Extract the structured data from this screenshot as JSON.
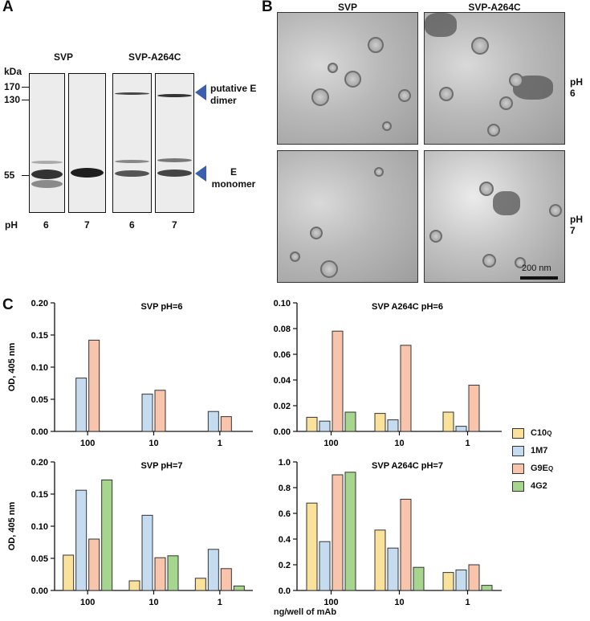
{
  "panels": {
    "a": "A",
    "b": "B",
    "c": "C"
  },
  "gel": {
    "kda_label": "kDa",
    "markers": [
      "170",
      "130",
      "55"
    ],
    "group_labels": [
      "SVP",
      "SVP-A264C"
    ],
    "ph_label": "pH",
    "lane_ph": [
      "6",
      "7",
      "6",
      "7"
    ],
    "annotations": [
      "putative E dimer",
      "E monomer"
    ],
    "arrow_color": "#3b5fae"
  },
  "em": {
    "col_labels": [
      "SVP",
      "SVP-A264C"
    ],
    "row_labels": [
      "pH 6",
      "pH 7"
    ],
    "scale_bar": "200 nm"
  },
  "legend": {
    "items": [
      {
        "name": "C10",
        "sup": "Q",
        "color": "#fbe29a"
      },
      {
        "name": "1M7",
        "sup": "",
        "color": "#c5dcf0"
      },
      {
        "name": "G9E",
        "sup": "Q",
        "color": "#f8c4ab"
      },
      {
        "name": "4G2",
        "sup": "",
        "color": "#a6d58d"
      }
    ]
  },
  "xlabel_shared": "ng/well of mAb",
  "chart_data": [
    {
      "type": "bar",
      "title": "SVP pH=6",
      "categories": [
        "100",
        "10",
        "1"
      ],
      "ylabel": "OD, 405 nm",
      "ylim": [
        0,
        0.2
      ],
      "yticks": [
        "0.00",
        "0.05",
        "0.10",
        "0.15",
        "0.20"
      ],
      "series": [
        {
          "name": "C10Q",
          "values": [
            null,
            null,
            null
          ]
        },
        {
          "name": "1M7",
          "values": [
            0.083,
            0.058,
            0.031
          ]
        },
        {
          "name": "G9EQ",
          "values": [
            0.142,
            0.064,
            0.023
          ]
        },
        {
          "name": "4G2",
          "values": [
            null,
            null,
            null
          ]
        }
      ]
    },
    {
      "type": "bar",
      "title": "SVP A264C pH=6",
      "categories": [
        "100",
        "10",
        "1"
      ],
      "ylabel": "",
      "ylim": [
        0,
        0.1
      ],
      "yticks": [
        "0.00",
        "0.02",
        "0.04",
        "0.06",
        "0.08",
        "0.10"
      ],
      "series": [
        {
          "name": "C10Q",
          "values": [
            0.011,
            0.014,
            0.015
          ]
        },
        {
          "name": "1M7",
          "values": [
            0.008,
            0.009,
            0.004
          ]
        },
        {
          "name": "G9EQ",
          "values": [
            0.078,
            0.067,
            0.036
          ]
        },
        {
          "name": "4G2",
          "values": [
            0.015,
            null,
            null
          ]
        }
      ]
    },
    {
      "type": "bar",
      "title": "SVP pH=7",
      "categories": [
        "100",
        "10",
        "1"
      ],
      "ylabel": "OD, 405 nm",
      "ylim": [
        0,
        0.2
      ],
      "yticks": [
        "0.00",
        "0.05",
        "0.10",
        "0.15",
        "0.20"
      ],
      "series": [
        {
          "name": "C10Q",
          "values": [
            0.055,
            0.015,
            0.019
          ]
        },
        {
          "name": "1M7",
          "values": [
            0.156,
            0.117,
            0.064
          ]
        },
        {
          "name": "G9EQ",
          "values": [
            0.08,
            0.051,
            0.034
          ]
        },
        {
          "name": "4G2",
          "values": [
            0.172,
            0.054,
            0.007
          ]
        }
      ]
    },
    {
      "type": "bar",
      "title": "SVP A264C pH=7",
      "categories": [
        "100",
        "10",
        "1"
      ],
      "ylabel": "",
      "ylim": [
        0,
        1.0
      ],
      "yticks": [
        "0.0",
        "0.2",
        "0.4",
        "0.6",
        "0.8",
        "1.0"
      ],
      "series": [
        {
          "name": "C10Q",
          "values": [
            0.68,
            0.47,
            0.14
          ]
        },
        {
          "name": "1M7",
          "values": [
            0.38,
            0.33,
            0.16
          ]
        },
        {
          "name": "G9EQ",
          "values": [
            0.9,
            0.71,
            0.2
          ]
        },
        {
          "name": "4G2",
          "values": [
            0.92,
            0.18,
            0.04
          ]
        }
      ]
    }
  ]
}
